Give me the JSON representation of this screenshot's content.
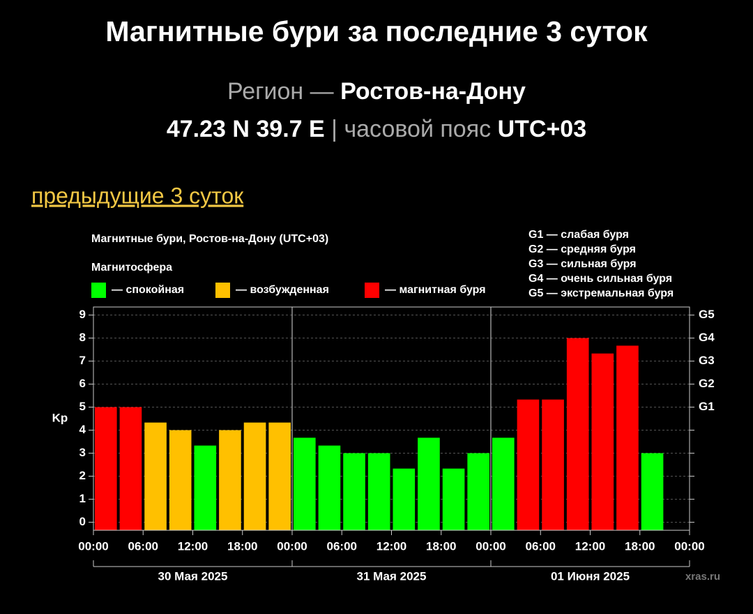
{
  "header": {
    "title": "Магнитные бури за последние 3 суток",
    "region_label": "Регион —",
    "region": "Ростов-на-Дону",
    "coords": "47.23 N 39.7 E",
    "separator": "|",
    "tz_label": "часовой пояс",
    "tz": "UTC+03",
    "link": "предыдущие 3 суток"
  },
  "chart_data": {
    "type": "bar",
    "title": "Магнитные бури, Ростов-на-Дону (UTC+03)",
    "legend_title": "Магнитосфера",
    "legend": [
      {
        "name": "— спокойная",
        "color": "#00ff00"
      },
      {
        "name": "— возбужденная",
        "color": "#ffc000"
      },
      {
        "name": "— магнитная буря",
        "color": "#ff0000"
      }
    ],
    "storm_levels": [
      "G1 — слабая буря",
      "G2 — средняя буря",
      "G3 — сильная буря",
      "G4 — очень сильная буря",
      "G5 — экстремальная буря"
    ],
    "ylabel": "Kp",
    "x": [
      0,
      3,
      6,
      9,
      12,
      15,
      18,
      21,
      24,
      27,
      30,
      33,
      36,
      39,
      42,
      45,
      48,
      51,
      54,
      57,
      60,
      63,
      66
    ],
    "values": [
      5,
      5,
      4.33,
      4,
      3.33,
      4,
      4.33,
      4.33,
      3.67,
      3.33,
      3,
      3,
      2.33,
      3.67,
      2.33,
      3,
      3.67,
      5.33,
      5.33,
      8,
      7.33,
      7.67,
      3
    ],
    "colors": [
      "#ff0000",
      "#ff0000",
      "#ffc000",
      "#ffc000",
      "#00ff00",
      "#ffc000",
      "#ffc000",
      "#ffc000",
      "#00ff00",
      "#00ff00",
      "#00ff00",
      "#00ff00",
      "#00ff00",
      "#00ff00",
      "#00ff00",
      "#00ff00",
      "#00ff00",
      "#ff0000",
      "#ff0000",
      "#ff0000",
      "#ff0000",
      "#ff0000",
      "#00ff00"
    ],
    "xlim": [
      0,
      72
    ],
    "xticks": [
      {
        "value": 0,
        "label": "00:00"
      },
      {
        "value": 6,
        "label": "06:00"
      },
      {
        "value": 12,
        "label": "12:00"
      },
      {
        "value": 18,
        "label": "18:00"
      },
      {
        "value": 24,
        "label": "00:00"
      },
      {
        "value": 30,
        "label": "06:00"
      },
      {
        "value": 36,
        "label": "12:00"
      },
      {
        "value": 42,
        "label": "18:00"
      },
      {
        "value": 48,
        "label": "00:00"
      },
      {
        "value": 54,
        "label": "06:00"
      },
      {
        "value": 60,
        "label": "12:00"
      },
      {
        "value": 66,
        "label": "18:00"
      },
      {
        "value": 72,
        "label": "00:00"
      }
    ],
    "ylim": [
      -0.35,
      9.35
    ],
    "yticks": [
      0,
      1,
      2,
      3,
      4,
      5,
      6,
      7,
      8,
      9
    ],
    "y2lim": [
      -0.35,
      9.35
    ],
    "y2ticks": [
      {
        "value": 5,
        "label": "G1"
      },
      {
        "value": 6,
        "label": "G2"
      },
      {
        "value": 7,
        "label": "G3"
      },
      {
        "value": 8,
        "label": "G4"
      },
      {
        "value": 9,
        "label": "G5"
      }
    ],
    "day_labels": [
      "30 Мая 2025",
      "31 Мая 2025",
      "01 Июня 2025"
    ],
    "grid": true,
    "watermark": "xras.ru"
  }
}
